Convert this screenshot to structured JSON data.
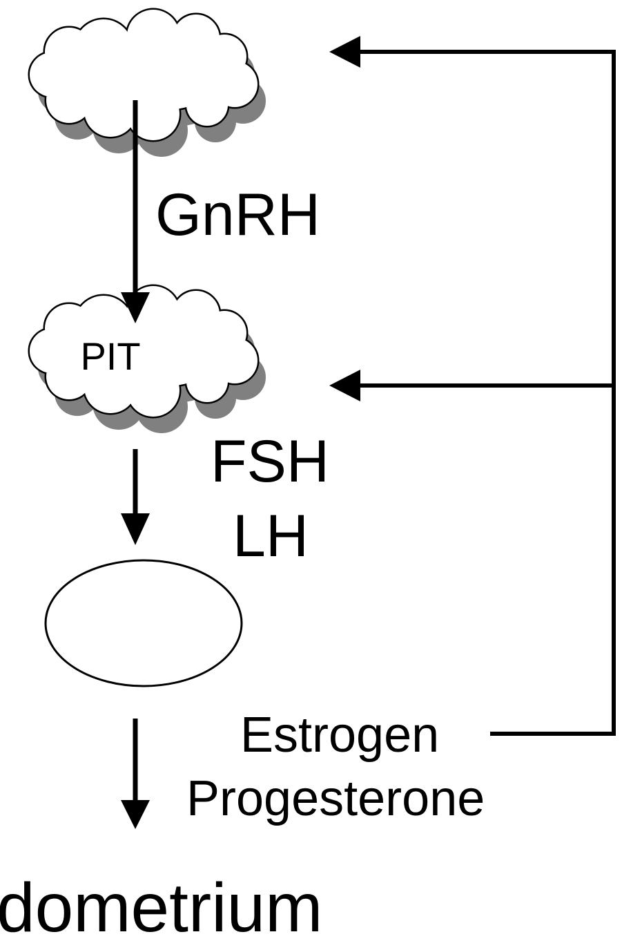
{
  "diagram": {
    "labels": {
      "pituitary": "PIT",
      "gnrh": "GnRH",
      "fsh": "FSH",
      "lh": "LH",
      "estrogen": "Estrogen",
      "progesterone": "Progesterone",
      "target": "dometrium"
    },
    "colors": {
      "line": "#000000",
      "cloud_fill": "#ffffff",
      "cloud_shadow": "#808080",
      "background": "#ffffff"
    }
  }
}
